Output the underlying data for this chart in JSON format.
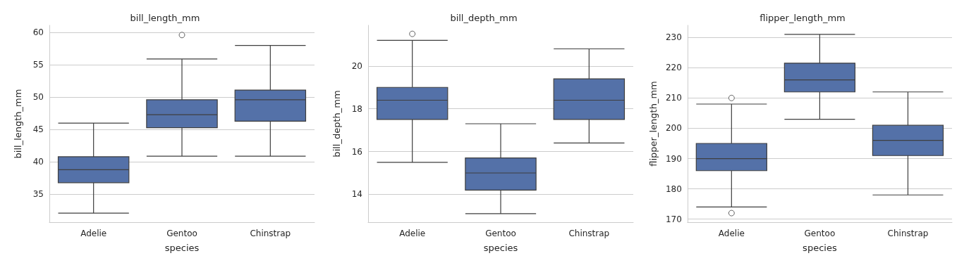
{
  "chart_data": [
    {
      "type": "box",
      "title": "bill_length_mm",
      "xlabel": "species",
      "ylabel": "bill_length_mm",
      "categories": [
        "Adelie",
        "Gentoo",
        "Chinstrap"
      ],
      "color": "#5471a8",
      "grid": "y",
      "ylim": [
        30.7,
        61.1
      ],
      "yticks": [
        35,
        40,
        45,
        50,
        55,
        60
      ],
      "boxes": [
        {
          "low": 32.1,
          "q1": 36.8,
          "median": 38.8,
          "q3": 40.8,
          "high": 46.0
        },
        {
          "low": 40.9,
          "q1": 45.3,
          "median": 47.3,
          "q3": 49.6,
          "high": 55.9,
          "outliers": [
            59.6
          ]
        },
        {
          "low": 40.9,
          "q1": 46.3,
          "median": 49.6,
          "q3": 51.1,
          "high": 58.0
        }
      ]
    },
    {
      "type": "box",
      "title": "bill_depth_mm",
      "xlabel": "species",
      "ylabel": "bill_depth_mm",
      "categories": [
        "Adelie",
        "Gentoo",
        "Chinstrap"
      ],
      "color": "#5471a8",
      "grid": "y",
      "ylim": [
        12.7,
        21.9
      ],
      "yticks": [
        14,
        16,
        18,
        20
      ],
      "boxes": [
        {
          "low": 15.5,
          "q1": 17.5,
          "median": 18.4,
          "q3": 19.0,
          "high": 21.2,
          "outliers": [
            21.5
          ]
        },
        {
          "low": 13.1,
          "q1": 14.2,
          "median": 15.0,
          "q3": 15.7,
          "high": 17.3
        },
        {
          "low": 16.4,
          "q1": 17.5,
          "median": 18.4,
          "q3": 19.4,
          "high": 20.8
        }
      ]
    },
    {
      "type": "box",
      "title": "flipper_length_mm",
      "xlabel": "species",
      "ylabel": "flipper_length_mm",
      "categories": [
        "Adelie",
        "Gentoo",
        "Chinstrap"
      ],
      "color": "#5471a8",
      "grid": "y",
      "ylim": [
        169,
        234
      ],
      "yticks": [
        170,
        180,
        190,
        200,
        210,
        220,
        230
      ],
      "boxes": [
        {
          "low": 174,
          "q1": 186,
          "median": 190,
          "q3": 195,
          "high": 208,
          "outliers": [
            172,
            210
          ]
        },
        {
          "low": 203,
          "q1": 212,
          "median": 216,
          "q3": 221.5,
          "high": 231
        },
        {
          "low": 178,
          "q1": 191,
          "median": 196,
          "q3": 201,
          "high": 212
        }
      ]
    }
  ]
}
